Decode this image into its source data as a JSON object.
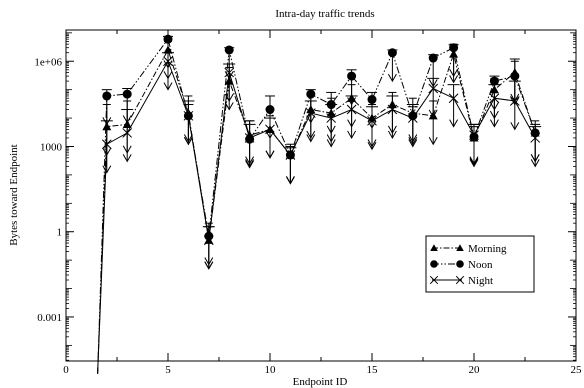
{
  "chart_data": {
    "type": "line",
    "title": "Intra-day traffic trends",
    "xlabel": "Endpoint ID",
    "ylabel": "Bytes toward Endpoint",
    "xlim": [
      0,
      25
    ],
    "ylim_log10": [
      -4.55,
      7.1
    ],
    "y_scale": "log",
    "xticks": [
      0,
      5,
      10,
      15,
      20,
      25
    ],
    "yticks": [
      {
        "log10": -3,
        "label": "0.001"
      },
      {
        "log10": 0,
        "label": "1"
      },
      {
        "log10": 3,
        "label": "1000"
      },
      {
        "log10": 6,
        "label": "1e+06"
      }
    ],
    "grid": false,
    "legend_position": "lower-right",
    "x": [
      2,
      3,
      5,
      6,
      7,
      8,
      9,
      10,
      11,
      12,
      13,
      14,
      15,
      16,
      17,
      18,
      19,
      20,
      21,
      22,
      23
    ],
    "series": [
      {
        "name": "Morning",
        "marker": "triangle",
        "dash": "6,2,1.5,2",
        "lead_in": [
          {
            "x": 1.55,
            "y": 1e-05
          }
        ],
        "values": [
          5000,
          6000,
          2500000,
          15000,
          0.5,
          200000,
          2500,
          4000,
          500,
          20000,
          15000,
          50000,
          10000,
          30000,
          15000,
          12000,
          1800000,
          2000,
          100000,
          400000,
          3000
        ],
        "err_lo": [
          500,
          600,
          250000,
          1500,
          0.05,
          20000,
          250,
          400,
          50,
          2000,
          1500,
          5000,
          1000,
          3000,
          1500,
          1200,
          180000,
          200,
          10000,
          40000,
          300
        ],
        "err_hi": [
          30000,
          40000,
          5000000,
          60000,
          2,
          600000,
          8000,
          12000,
          1200,
          60000,
          50000,
          150000,
          30000,
          80000,
          50000,
          40000,
          4000000,
          6000,
          250000,
          1000000,
          8000
        ]
      },
      {
        "name": "Noon",
        "marker": "circle",
        "dash": "7,2,1.5,2,1.5,2",
        "lead_in": [
          {
            "x": 1.55,
            "y": 1e-05
          }
        ],
        "values": [
          60000,
          70000,
          6000000,
          12000,
          0.7,
          2500000,
          1800,
          20000,
          500,
          70000,
          30000,
          300000,
          45000,
          2000000,
          12000,
          1300000,
          3000000,
          2200,
          200000,
          300000,
          3000
        ],
        "err_lo": [
          6000,
          7000,
          600000,
          1200,
          0.07,
          250000,
          180,
          2000,
          50,
          7000,
          3000,
          30000,
          4500,
          200000,
          1200,
          130000,
          300000,
          220,
          20000,
          30000,
          300
        ],
        "err_hi": [
          100000,
          110000,
          7500000,
          30000,
          1.5,
          3000000,
          8000,
          60000,
          1000,
          100000,
          80000,
          500000,
          80000,
          2500000,
          25000,
          1700000,
          3800000,
          5000,
          300000,
          1200000,
          6000
        ]
      },
      {
        "name": "Night",
        "marker": "x",
        "dash": "",
        "lead_in": [
          {
            "x": 1.55,
            "y": 1e-05
          }
        ],
        "values": [
          1200,
          3000,
          1000000,
          12000,
          0.5,
          400000,
          2000,
          4000,
          500,
          15000,
          10000,
          20000,
          8000,
          20000,
          10000,
          110000,
          50000,
          2500,
          50000,
          40000,
          2000
        ],
        "err_lo": [
          120,
          300,
          100000,
          1200,
          0.05,
          40000,
          200,
          400,
          50,
          1500,
          1000,
          2000,
          800,
          2000,
          1000,
          11000,
          5000,
          250,
          5000,
          4000,
          200
        ],
        "err_hi": [
          8000,
          20000,
          2000000,
          40000,
          1.5,
          800000,
          6000,
          10000,
          900,
          40000,
          30000,
          60000,
          25000,
          60000,
          30000,
          250000,
          150000,
          6000,
          150000,
          200000,
          5000
        ]
      }
    ]
  }
}
